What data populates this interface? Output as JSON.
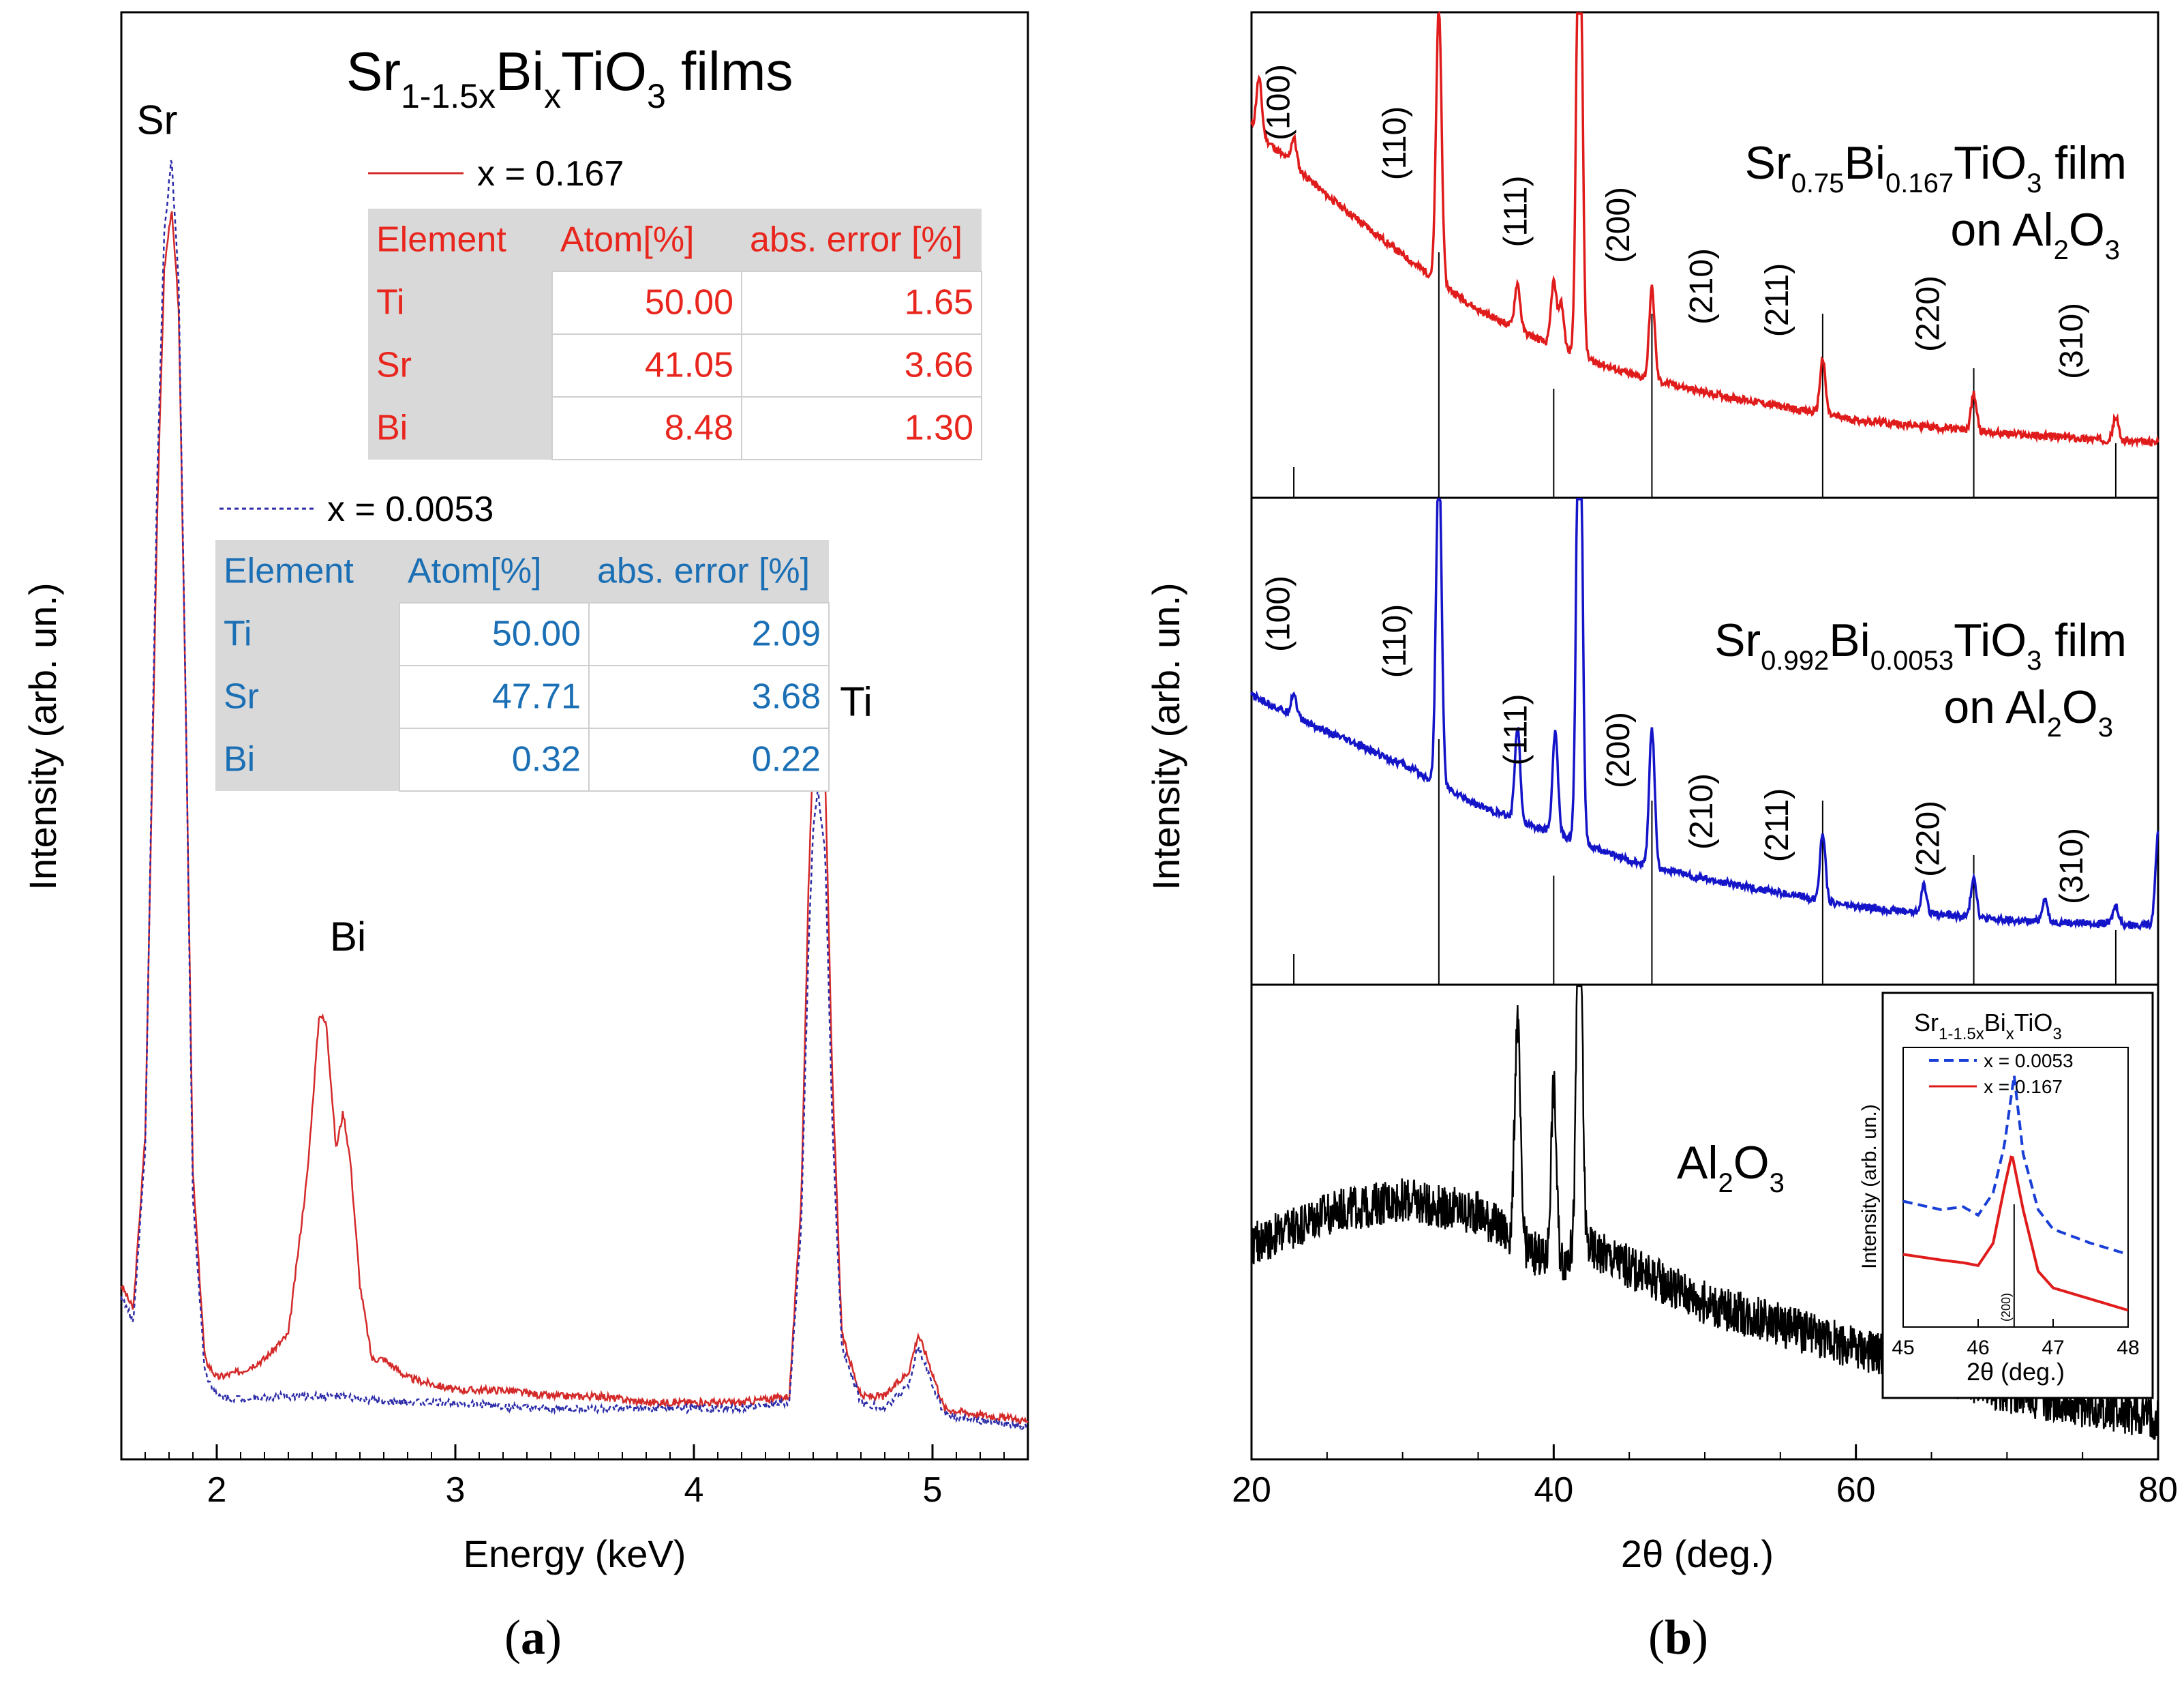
{
  "chart_data": [
    {
      "id": "a",
      "type": "line",
      "panel_label": "a",
      "title": {
        "base": "Sr",
        "sub1": "1-1.5x",
        "mid": "Bi",
        "sub2": "x",
        "tail": "TiO",
        "sub3": "3",
        "end": " films"
      },
      "xlabel": "Energy (keV)",
      "ylabel": "Intensity (arb. un.)",
      "xlim": [
        1.6,
        5.4
      ],
      "ylim": [
        0,
        1.08
      ],
      "xticks": [
        2,
        3,
        4,
        5
      ],
      "peak_labels": [
        {
          "text": "Sr",
          "x": 1.75,
          "y": 1.06
        },
        {
          "text": "Bi",
          "x": 2.55,
          "y": 0.4
        },
        {
          "text": "Ti",
          "x": 4.68,
          "y": 0.59
        }
      ],
      "series": [
        {
          "name": "x = 0.167",
          "color": "#d42a2a",
          "dash": "",
          "x": [
            1.6,
            1.65,
            1.7,
            1.75,
            1.78,
            1.81,
            1.84,
            1.87,
            1.9,
            1.95,
            2.0,
            2.1,
            2.2,
            2.3,
            2.38,
            2.43,
            2.46,
            2.5,
            2.53,
            2.56,
            2.6,
            2.65,
            2.7,
            2.8,
            2.9,
            3.0,
            3.2,
            3.4,
            3.6,
            3.8,
            4.0,
            4.2,
            4.4,
            4.45,
            4.48,
            4.5,
            4.52,
            4.55,
            4.58,
            4.62,
            4.7,
            4.8,
            4.9,
            4.94,
            4.98,
            5.05,
            5.2,
            5.4
          ],
          "y": [
            0.13,
            0.11,
            0.25,
            0.75,
            0.95,
            1.0,
            0.92,
            0.6,
            0.22,
            0.07,
            0.055,
            0.06,
            0.07,
            0.09,
            0.22,
            0.35,
            0.34,
            0.24,
            0.27,
            0.23,
            0.13,
            0.07,
            0.07,
            0.055,
            0.05,
            0.045,
            0.045,
            0.04,
            0.04,
            0.035,
            0.035,
            0.035,
            0.04,
            0.2,
            0.45,
            0.56,
            0.59,
            0.54,
            0.3,
            0.09,
            0.04,
            0.04,
            0.06,
            0.09,
            0.07,
            0.03,
            0.025,
            0.02
          ]
        },
        {
          "name": "x = 0.0053",
          "color": "#2c2ca8",
          "dash": "6,5",
          "x": [
            1.6,
            1.65,
            1.7,
            1.75,
            1.78,
            1.81,
            1.84,
            1.87,
            1.9,
            1.95,
            2.0,
            2.1,
            2.3,
            2.5,
            2.7,
            3.0,
            3.3,
            3.6,
            3.9,
            4.2,
            4.4,
            4.45,
            4.48,
            4.5,
            4.52,
            4.55,
            4.58,
            4.62,
            4.7,
            4.8,
            4.9,
            4.94,
            4.98,
            5.05,
            5.2,
            5.4
          ],
          "y": [
            0.12,
            0.1,
            0.24,
            0.78,
            0.98,
            1.04,
            0.94,
            0.6,
            0.2,
            0.06,
            0.04,
            0.038,
            0.04,
            0.04,
            0.035,
            0.035,
            0.03,
            0.03,
            0.03,
            0.03,
            0.035,
            0.18,
            0.4,
            0.5,
            0.53,
            0.48,
            0.26,
            0.08,
            0.035,
            0.03,
            0.05,
            0.08,
            0.06,
            0.025,
            0.02,
            0.015
          ]
        }
      ],
      "tables": [
        {
          "series": "x = 0.167",
          "legend_label": "x = 0.167",
          "color": "#e8261e",
          "headers": [
            "Element",
            "Atom[%]",
            "abs. error [%]"
          ],
          "rows": [
            [
              "Ti",
              "50.00",
              "1.65"
            ],
            [
              "Sr",
              "41.05",
              "3.66"
            ],
            [
              "Bi",
              "8.48",
              "1.30"
            ]
          ]
        },
        {
          "series": "x = 0.0053",
          "legend_label": "x = 0.0053",
          "color": "#1b6fb5",
          "headers": [
            "Element",
            "Atom[%]",
            "abs. error [%]"
          ],
          "rows": [
            [
              "Ti",
              "50.00",
              "2.09"
            ],
            [
              "Sr",
              "47.71",
              "3.68"
            ],
            [
              "Bi",
              "0.32",
              "0.22"
            ]
          ]
        }
      ]
    },
    {
      "id": "b",
      "type": "line",
      "panel_label": "b",
      "xlabel": "2θ (deg.)",
      "ylabel": "Intensity (arb. un.)",
      "xlim": [
        20,
        80
      ],
      "xticks": [
        20,
        40,
        60,
        80
      ],
      "reference_lines": [
        22.8,
        32.4,
        40.0,
        46.5,
        57.8,
        67.8,
        77.2
      ],
      "hkl_labels": [
        {
          "text": "(100)",
          "x": 22.5
        },
        {
          "text": "(110)",
          "x": 30.2
        },
        {
          "text": "(111)",
          "x": 38.2
        },
        {
          "text": "(200)",
          "x": 45.0
        },
        {
          "text": "(210)",
          "x": 50.5
        },
        {
          "text": "(211)",
          "x": 55.5
        },
        {
          "text": "(220)",
          "x": 65.5
        },
        {
          "text": "(310)",
          "x": 75.0
        }
      ],
      "sub_panels": [
        {
          "name": "Sr0.75Bi0.167TiO3 film on Al2O3",
          "color": "#e01b1b",
          "label": {
            "base": "Sr",
            "s1": "0.75",
            "mid": "Bi",
            "s2": "0.167",
            "tail": "TiO",
            "s3": "3",
            "end": " film"
          },
          "label2": {
            "base": "on Al",
            "s1": "2",
            "mid": "O",
            "s2": "3"
          },
          "baseline": [
            [
              20,
              0.78
            ],
            [
              25,
              0.63
            ],
            [
              30,
              0.5
            ],
            [
              35,
              0.38
            ],
            [
              40,
              0.3
            ],
            [
              45,
              0.24
            ],
            [
              50,
              0.2
            ],
            [
              60,
              0.14
            ],
            [
              70,
              0.11
            ],
            [
              80,
              0.09
            ]
          ],
          "peaks": [
            [
              20.5,
              0.12
            ],
            [
              22.8,
              0.06
            ],
            [
              32.4,
              0.6
            ],
            [
              37.6,
              0.1
            ],
            [
              40.0,
              0.14
            ],
            [
              40.5,
              0.1
            ],
            [
              41.7,
              1.2
            ],
            [
              46.5,
              0.2
            ],
            [
              57.8,
              0.12
            ],
            [
              67.8,
              0.08
            ],
            [
              77.2,
              0.05
            ]
          ],
          "noise": 0.008
        },
        {
          "name": "Sr0.992Bi0.0053TiO3 film on Al2O3",
          "color": "#1414c8",
          "label": {
            "base": "Sr",
            "s1": "0.992",
            "mid": "Bi",
            "s2": "0.0053",
            "tail": "TiO",
            "s3": "3",
            "end": " film"
          },
          "label2": {
            "base": "on Al",
            "s1": "2",
            "mid": "O",
            "s2": "3"
          },
          "baseline": [
            [
              20,
              0.6
            ],
            [
              25,
              0.52
            ],
            [
              30,
              0.45
            ],
            [
              35,
              0.36
            ],
            [
              40,
              0.3
            ],
            [
              45,
              0.24
            ],
            [
              50,
              0.2
            ],
            [
              60,
              0.14
            ],
            [
              70,
              0.11
            ],
            [
              80,
              0.1
            ]
          ],
          "peaks": [
            [
              22.8,
              0.05
            ],
            [
              32.4,
              0.72
            ],
            [
              37.6,
              0.2
            ],
            [
              40.1,
              0.22
            ],
            [
              41.7,
              1.2
            ],
            [
              46.5,
              0.3
            ],
            [
              57.8,
              0.15
            ],
            [
              64.5,
              0.06
            ],
            [
              67.8,
              0.09
            ],
            [
              72.5,
              0.05
            ],
            [
              77.2,
              0.04
            ],
            [
              80,
              0.2
            ]
          ],
          "noise": 0.008
        },
        {
          "name": "Al2O3",
          "color": "#000000",
          "label": {
            "base": "Al",
            "s1": "2",
            "mid": "O",
            "s2": "3",
            "tail": "",
            "s3": "",
            "end": ""
          },
          "baseline": [
            [
              20,
              0.45
            ],
            [
              25,
              0.52
            ],
            [
              30,
              0.55
            ],
            [
              35,
              0.52
            ],
            [
              40,
              0.4
            ],
            [
              42,
              0.45
            ],
            [
              45,
              0.4
            ],
            [
              50,
              0.32
            ],
            [
              60,
              0.22
            ],
            [
              70,
              0.12
            ],
            [
              80,
              0.06
            ]
          ],
          "peaks": [
            [
              37.6,
              0.5
            ],
            [
              40.0,
              0.4
            ],
            [
              41.7,
              0.9
            ]
          ],
          "noise": 0.05
        }
      ],
      "inset": {
        "title": {
          "base": "Sr",
          "s1": "1-1.5x",
          "mid": "Bi",
          "s2": "x",
          "tail": "TiO",
          "s3": "3"
        },
        "xlabel": "2θ (deg.)",
        "ylabel": "Intensity (arb. un.)",
        "xlim": [
          45,
          48
        ],
        "xticks": [
          45,
          46,
          47,
          48
        ],
        "marker_label": "(200)",
        "marker_x": 46.48,
        "series": [
          {
            "name": "x = 0.0053",
            "color": "#1a3fd6",
            "dash": "14,8",
            "x": [
              45,
              45.5,
              45.8,
              46.0,
              46.2,
              46.35,
              46.48,
              46.6,
              46.8,
              47.0,
              47.5,
              48
            ],
            "y": [
              0.45,
              0.42,
              0.43,
              0.4,
              0.48,
              0.65,
              0.9,
              0.62,
              0.42,
              0.35,
              0.3,
              0.26
            ]
          },
          {
            "name": "x = 0.167",
            "color": "#e01b1b",
            "dash": "",
            "x": [
              45,
              45.5,
              45.8,
              46.0,
              46.2,
              46.35,
              46.45,
              46.6,
              46.8,
              47.0,
              47.5,
              48
            ],
            "y": [
              0.26,
              0.24,
              0.23,
              0.22,
              0.3,
              0.5,
              0.62,
              0.42,
              0.2,
              0.14,
              0.1,
              0.06
            ]
          }
        ]
      }
    }
  ]
}
